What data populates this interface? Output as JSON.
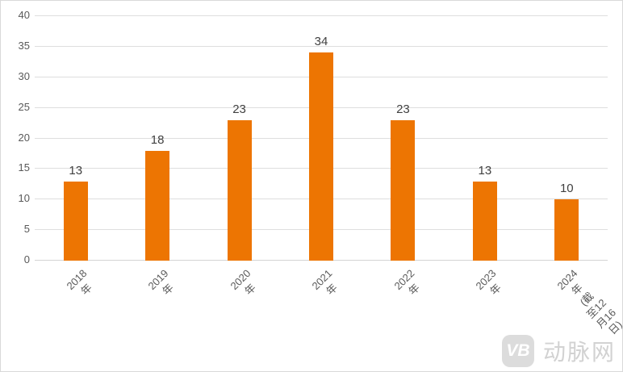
{
  "chart_data": {
    "type": "bar",
    "categories": [
      "2018年",
      "2019年",
      "2020年",
      "2021年",
      "2022年",
      "2023年",
      "2024年\n(截至12月16日)"
    ],
    "values": [
      13,
      18,
      23,
      34,
      23,
      13,
      10
    ],
    "title": "",
    "xlabel": "",
    "ylabel": "",
    "ylim": [
      0,
      40
    ],
    "yticks": [
      0,
      5,
      10,
      15,
      20,
      25,
      30,
      35,
      40
    ],
    "grid": true,
    "legend_position": "none",
    "data_labels": true,
    "bar_color": "#ed7502",
    "gridline_color": "#dedede",
    "value_label_color": "#404040",
    "tick_label_color": "#595959"
  },
  "watermark": {
    "logo_glyph": "VB",
    "text": "动脉网"
  }
}
